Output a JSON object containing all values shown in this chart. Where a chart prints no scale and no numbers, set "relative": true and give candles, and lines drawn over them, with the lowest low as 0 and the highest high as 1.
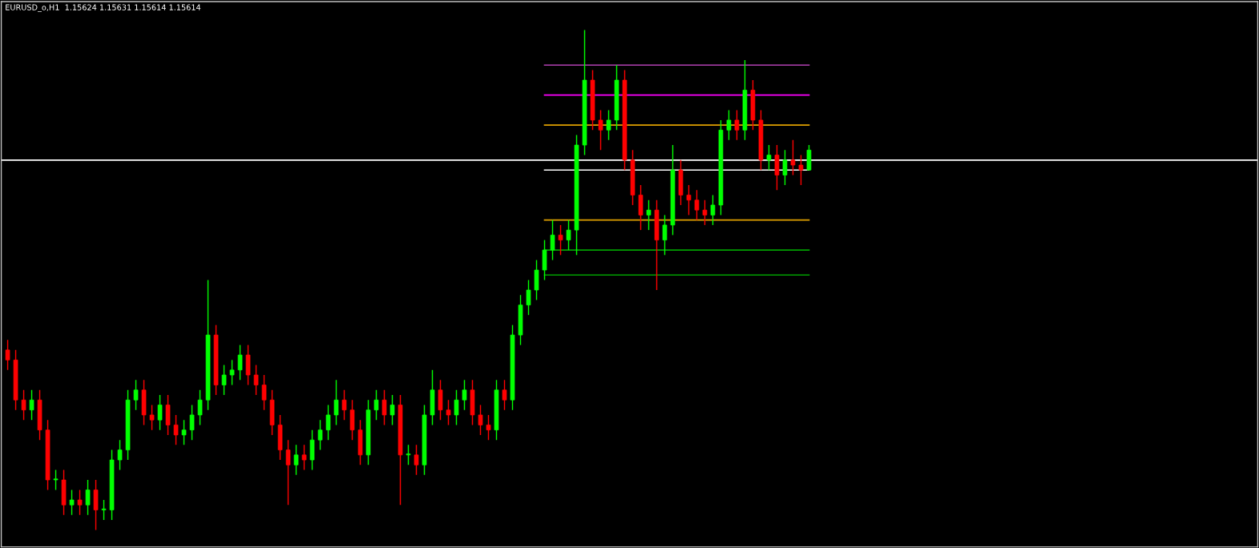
{
  "chart_data": {
    "type": "candlestick",
    "title": "EURUSD_o,H1  1.15624 1.15631 1.15614 1.15614",
    "relative": true,
    "tick_labels": false,
    "categories": [
      null,
      null,
      null,
      null,
      null,
      null,
      null,
      null,
      null,
      null,
      null,
      null,
      null,
      null,
      null,
      null,
      null,
      null,
      null,
      null,
      null,
      null,
      null,
      null,
      null,
      null,
      null,
      null,
      null,
      null,
      null,
      null,
      null,
      null,
      null,
      null,
      null,
      null,
      null,
      null,
      null,
      null,
      null,
      null,
      null,
      null,
      null,
      null,
      null,
      null,
      null,
      null,
      null,
      null,
      null,
      null,
      null,
      null,
      null,
      null,
      null,
      null,
      null,
      null,
      null,
      null,
      null,
      null,
      null,
      null,
      null,
      null,
      null,
      null,
      null,
      null,
      null,
      null,
      null,
      null,
      null,
      null,
      null,
      null,
      null,
      null,
      null,
      null,
      null,
      null,
      null,
      null,
      null,
      null,
      null,
      null,
      null,
      null,
      null,
      null,
      null
    ],
    "ohlc": [
      [
        0.36,
        0.38,
        0.32,
        0.34
      ],
      [
        0.34,
        0.36,
        0.24,
        0.26
      ],
      [
        0.26,
        0.28,
        0.22,
        0.24
      ],
      [
        0.24,
        0.28,
        0.22,
        0.26
      ],
      [
        0.26,
        0.28,
        0.18,
        0.2
      ],
      [
        0.2,
        0.22,
        0.08,
        0.1
      ],
      [
        0.1,
        0.12,
        0.08,
        0.1
      ],
      [
        0.1,
        0.12,
        0.03,
        0.05
      ],
      [
        0.05,
        0.08,
        0.03,
        0.06
      ],
      [
        0.06,
        0.08,
        0.03,
        0.05
      ],
      [
        0.05,
        0.1,
        0.03,
        0.08
      ],
      [
        0.08,
        0.1,
        0.0,
        0.04
      ],
      [
        0.04,
        0.06,
        0.02,
        0.04
      ],
      [
        0.04,
        0.16,
        0.02,
        0.14
      ],
      [
        0.14,
        0.18,
        0.12,
        0.16
      ],
      [
        0.16,
        0.28,
        0.14,
        0.26
      ],
      [
        0.26,
        0.3,
        0.24,
        0.28
      ],
      [
        0.28,
        0.3,
        0.21,
        0.23
      ],
      [
        0.23,
        0.25,
        0.2,
        0.22
      ],
      [
        0.22,
        0.27,
        0.2,
        0.25
      ],
      [
        0.25,
        0.27,
        0.19,
        0.21
      ],
      [
        0.21,
        0.23,
        0.17,
        0.19
      ],
      [
        0.19,
        0.22,
        0.17,
        0.2
      ],
      [
        0.2,
        0.25,
        0.18,
        0.23
      ],
      [
        0.23,
        0.28,
        0.21,
        0.26
      ],
      [
        0.26,
        0.5,
        0.24,
        0.39
      ],
      [
        0.39,
        0.41,
        0.27,
        0.29
      ],
      [
        0.29,
        0.33,
        0.27,
        0.31
      ],
      [
        0.31,
        0.34,
        0.29,
        0.32
      ],
      [
        0.32,
        0.37,
        0.3,
        0.35
      ],
      [
        0.35,
        0.37,
        0.29,
        0.31
      ],
      [
        0.31,
        0.33,
        0.27,
        0.29
      ],
      [
        0.29,
        0.31,
        0.24,
        0.26
      ],
      [
        0.26,
        0.28,
        0.19,
        0.21
      ],
      [
        0.21,
        0.23,
        0.14,
        0.16
      ],
      [
        0.16,
        0.18,
        0.05,
        0.13
      ],
      [
        0.13,
        0.17,
        0.11,
        0.15
      ],
      [
        0.15,
        0.17,
        0.12,
        0.14
      ],
      [
        0.14,
        0.2,
        0.12,
        0.18
      ],
      [
        0.18,
        0.22,
        0.16,
        0.2
      ],
      [
        0.2,
        0.25,
        0.18,
        0.23
      ],
      [
        0.23,
        0.3,
        0.21,
        0.26
      ],
      [
        0.26,
        0.28,
        0.22,
        0.24
      ],
      [
        0.24,
        0.26,
        0.18,
        0.2
      ],
      [
        0.2,
        0.22,
        0.13,
        0.15
      ],
      [
        0.15,
        0.26,
        0.13,
        0.24
      ],
      [
        0.24,
        0.28,
        0.22,
        0.26
      ],
      [
        0.26,
        0.28,
        0.21,
        0.23
      ],
      [
        0.23,
        0.27,
        0.21,
        0.25
      ],
      [
        0.25,
        0.27,
        0.05,
        0.15
      ],
      [
        0.15,
        0.17,
        0.13,
        0.15
      ],
      [
        0.15,
        0.17,
        0.11,
        0.13
      ],
      [
        0.13,
        0.25,
        0.11,
        0.23
      ],
      [
        0.23,
        0.32,
        0.21,
        0.28
      ],
      [
        0.28,
        0.3,
        0.22,
        0.24
      ],
      [
        0.24,
        0.26,
        0.21,
        0.23
      ],
      [
        0.23,
        0.28,
        0.21,
        0.26
      ],
      [
        0.26,
        0.3,
        0.24,
        0.28
      ],
      [
        0.28,
        0.3,
        0.21,
        0.23
      ],
      [
        0.23,
        0.25,
        0.19,
        0.21
      ],
      [
        0.21,
        0.23,
        0.18,
        0.2
      ],
      [
        0.2,
        0.3,
        0.18,
        0.28
      ],
      [
        0.28,
        0.3,
        0.24,
        0.26
      ],
      [
        0.26,
        0.41,
        0.24,
        0.39
      ],
      [
        0.39,
        0.47,
        0.37,
        0.45
      ],
      [
        0.45,
        0.5,
        0.43,
        0.48
      ],
      [
        0.48,
        0.54,
        0.46,
        0.52
      ],
      [
        0.52,
        0.58,
        0.5,
        0.56
      ],
      [
        0.56,
        0.62,
        0.54,
        0.59
      ],
      [
        0.59,
        0.61,
        0.55,
        0.58
      ],
      [
        0.58,
        0.62,
        0.56,
        0.6
      ],
      [
        0.6,
        0.79,
        0.55,
        0.77
      ],
      [
        0.77,
        1.0,
        0.75,
        0.9
      ],
      [
        0.9,
        0.92,
        0.8,
        0.82
      ],
      [
        0.82,
        0.84,
        0.76,
        0.8
      ],
      [
        0.8,
        0.84,
        0.78,
        0.82
      ],
      [
        0.82,
        0.93,
        0.8,
        0.9
      ],
      [
        0.9,
        0.92,
        0.72,
        0.74
      ],
      [
        0.74,
        0.76,
        0.65,
        0.67
      ],
      [
        0.67,
        0.69,
        0.6,
        0.63
      ],
      [
        0.63,
        0.66,
        0.6,
        0.64
      ],
      [
        0.64,
        0.66,
        0.48,
        0.58
      ],
      [
        0.58,
        0.63,
        0.55,
        0.61
      ],
      [
        0.61,
        0.77,
        0.59,
        0.72
      ],
      [
        0.72,
        0.74,
        0.65,
        0.67
      ],
      [
        0.67,
        0.69,
        0.63,
        0.66
      ],
      [
        0.66,
        0.68,
        0.62,
        0.64
      ],
      [
        0.64,
        0.66,
        0.61,
        0.63
      ],
      [
        0.63,
        0.67,
        0.61,
        0.65
      ],
      [
        0.65,
        0.82,
        0.63,
        0.8
      ],
      [
        0.8,
        0.84,
        0.78,
        0.82
      ],
      [
        0.82,
        0.84,
        0.78,
        0.8
      ],
      [
        0.8,
        0.94,
        0.78,
        0.88
      ],
      [
        0.88,
        0.9,
        0.8,
        0.82
      ],
      [
        0.82,
        0.84,
        0.72,
        0.74
      ],
      [
        0.74,
        0.77,
        0.72,
        0.75
      ],
      [
        0.75,
        0.77,
        0.68,
        0.71
      ],
      [
        0.71,
        0.76,
        0.69,
        0.74
      ],
      [
        0.74,
        0.78,
        0.71,
        0.73
      ],
      [
        0.73,
        0.75,
        0.69,
        0.72
      ],
      [
        0.72,
        0.77,
        0.72,
        0.76
      ]
    ],
    "colors": [
      "#ff0000",
      "#ff0000",
      "#ff0000",
      "#00ff00",
      "#ff0000",
      "#ff0000",
      "#00ff00",
      "#ff0000",
      "#00ff00",
      "#ff0000",
      "#00ff00",
      "#ff0000",
      "#00ff00",
      "#00ff00",
      "#00ff00",
      "#00ff00",
      "#00ff00",
      "#ff0000",
      "#ff0000",
      "#00ff00",
      "#ff0000",
      "#ff0000",
      "#00ff00",
      "#00ff00",
      "#00ff00",
      "#00ff00",
      "#ff0000",
      "#00ff00",
      "#00ff00",
      "#00ff00",
      "#ff0000",
      "#ff0000",
      "#ff0000",
      "#ff0000",
      "#ff0000",
      "#ff0000",
      "#00ff00",
      "#ff0000",
      "#00ff00",
      "#00ff00",
      "#00ff00",
      "#00ff00",
      "#ff0000",
      "#ff0000",
      "#ff0000",
      "#00ff00",
      "#00ff00",
      "#ff0000",
      "#00ff00",
      "#ff0000",
      "#00ff00",
      "#ff0000",
      "#00ff00",
      "#00ff00",
      "#ff0000",
      "#ff0000",
      "#00ff00",
      "#00ff00",
      "#ff0000",
      "#ff0000",
      "#ff0000",
      "#00ff00",
      "#ff0000",
      "#00ff00",
      "#00ff00",
      "#00ff00",
      "#00ff00",
      "#00ff00",
      "#00ff00",
      "#ff0000",
      "#00ff00",
      "#00ff00",
      "#00ff00",
      "#ff0000",
      "#ff0000",
      "#00ff00",
      "#00ff00",
      "#ff0000",
      "#ff0000",
      "#ff0000",
      "#00ff00",
      "#ff0000",
      "#00ff00",
      "#00ff00",
      "#ff0000",
      "#ff0000",
      "#ff0000",
      "#ff0000",
      "#00ff00",
      "#00ff00",
      "#00ff00",
      "#ff0000",
      "#00ff00",
      "#ff0000",
      "#ff0000",
      "#00ff00",
      "#ff0000",
      "#00ff00",
      "#ff0000",
      "#ff0000",
      "#00ff00"
    ],
    "series": [
      {
        "type": "line",
        "color": "#b040b0",
        "values": [
          null,
          null,
          null,
          null,
          null,
          null,
          null,
          null,
          null,
          null,
          null,
          null,
          null,
          null,
          null,
          null,
          null,
          null,
          null,
          null,
          null,
          null,
          null,
          null,
          null,
          null,
          null,
          null,
          null,
          null,
          null,
          null,
          null,
          null,
          null,
          null,
          null,
          null,
          null,
          null,
          null,
          null,
          null,
          null,
          null,
          null,
          null,
          null,
          null,
          null,
          null,
          null,
          null,
          null,
          null,
          null,
          null,
          null,
          null,
          null,
          null,
          null,
          null,
          null,
          null,
          null,
          null,
          0.93,
          0.93,
          0.93,
          0.93,
          0.93,
          0.93,
          0.93,
          0.93,
          0.93,
          0.93,
          0.93,
          0.93,
          0.93,
          0.93,
          0.93,
          0.93,
          0.93,
          0.93,
          0.93,
          0.93,
          0.93,
          0.93,
          0.93,
          0.93,
          0.93,
          0.93,
          0.93,
          0.93,
          0.93,
          0.93,
          0.93,
          0.93,
          0.93,
          0.93
        ]
      },
      {
        "type": "line",
        "color": "#ff00ff",
        "values": [
          null,
          null,
          null,
          null,
          null,
          null,
          null,
          null,
          null,
          null,
          null,
          null,
          null,
          null,
          null,
          null,
          null,
          null,
          null,
          null,
          null,
          null,
          null,
          null,
          null,
          null,
          null,
          null,
          null,
          null,
          null,
          null,
          null,
          null,
          null,
          null,
          null,
          null,
          null,
          null,
          null,
          null,
          null,
          null,
          null,
          null,
          null,
          null,
          null,
          null,
          null,
          null,
          null,
          null,
          null,
          null,
          null,
          null,
          null,
          null,
          null,
          null,
          null,
          null,
          null,
          null,
          null,
          0.87,
          0.87,
          0.87,
          0.87,
          0.87,
          0.87,
          0.87,
          0.87,
          0.87,
          0.87,
          0.87,
          0.87,
          0.87,
          0.87,
          0.87,
          0.87,
          0.87,
          0.87,
          0.87,
          0.87,
          0.87,
          0.87,
          0.87,
          0.87,
          0.87,
          0.87,
          0.87,
          0.87,
          0.87,
          0.87,
          0.87,
          0.87,
          0.87,
          0.87
        ]
      },
      {
        "type": "line",
        "color": "#e0a000",
        "values": [
          null,
          null,
          null,
          null,
          null,
          null,
          null,
          null,
          null,
          null,
          null,
          null,
          null,
          null,
          null,
          null,
          null,
          null,
          null,
          null,
          null,
          null,
          null,
          null,
          null,
          null,
          null,
          null,
          null,
          null,
          null,
          null,
          null,
          null,
          null,
          null,
          null,
          null,
          null,
          null,
          null,
          null,
          null,
          null,
          null,
          null,
          null,
          null,
          null,
          null,
          null,
          null,
          null,
          null,
          null,
          null,
          null,
          null,
          null,
          null,
          null,
          null,
          null,
          null,
          null,
          null,
          null,
          0.81,
          0.81,
          0.81,
          0.81,
          0.81,
          0.81,
          0.81,
          0.81,
          0.81,
          0.81,
          0.81,
          0.81,
          0.81,
          0.81,
          0.81,
          0.81,
          0.81,
          0.81,
          0.81,
          0.81,
          0.81,
          0.81,
          0.81,
          0.81,
          0.81,
          0.81,
          0.81,
          0.81,
          0.81,
          0.81,
          0.81,
          0.81,
          0.81,
          0.81
        ]
      },
      {
        "type": "line",
        "color": "#ffffff",
        "values": [
          null,
          null,
          null,
          null,
          null,
          null,
          null,
          null,
          null,
          null,
          null,
          null,
          null,
          null,
          null,
          null,
          null,
          null,
          null,
          null,
          null,
          null,
          null,
          null,
          null,
          null,
          null,
          null,
          null,
          null,
          null,
          null,
          null,
          null,
          null,
          null,
          null,
          null,
          null,
          null,
          null,
          null,
          null,
          null,
          null,
          null,
          null,
          null,
          null,
          null,
          null,
          null,
          null,
          null,
          null,
          null,
          null,
          null,
          null,
          null,
          null,
          null,
          null,
          null,
          null,
          null,
          null,
          0.72,
          0.72,
          0.72,
          0.72,
          0.72,
          0.72,
          0.72,
          0.72,
          0.72,
          0.72,
          0.72,
          0.72,
          0.72,
          0.72,
          0.72,
          0.72,
          0.72,
          0.72,
          0.72,
          0.72,
          0.72,
          0.72,
          0.72,
          0.72,
          0.72,
          0.72,
          0.72,
          0.72,
          0.72,
          0.72,
          0.72,
          0.72,
          0.72,
          0.72
        ]
      },
      {
        "type": "line",
        "color": "#e0a000",
        "values": [
          null,
          null,
          null,
          null,
          null,
          null,
          null,
          null,
          null,
          null,
          null,
          null,
          null,
          null,
          null,
          null,
          null,
          null,
          null,
          null,
          null,
          null,
          null,
          null,
          null,
          null,
          null,
          null,
          null,
          null,
          null,
          null,
          null,
          null,
          null,
          null,
          null,
          null,
          null,
          null,
          null,
          null,
          null,
          null,
          null,
          null,
          null,
          null,
          null,
          null,
          null,
          null,
          null,
          null,
          null,
          null,
          null,
          null,
          null,
          null,
          null,
          null,
          null,
          null,
          null,
          null,
          null,
          0.62,
          0.62,
          0.62,
          0.62,
          0.62,
          0.62,
          0.62,
          0.62,
          0.62,
          0.62,
          0.62,
          0.62,
          0.62,
          0.62,
          0.62,
          0.62,
          0.62,
          0.62,
          0.62,
          0.62,
          0.62,
          0.62,
          0.62,
          0.62,
          0.62,
          0.62,
          0.62,
          0.62,
          0.62,
          0.62,
          0.62,
          0.62,
          0.62,
          0.62
        ]
      },
      {
        "type": "line",
        "color": "#00a000",
        "values": [
          null,
          null,
          null,
          null,
          null,
          null,
          null,
          null,
          null,
          null,
          null,
          null,
          null,
          null,
          null,
          null,
          null,
          null,
          null,
          null,
          null,
          null,
          null,
          null,
          null,
          null,
          null,
          null,
          null,
          null,
          null,
          null,
          null,
          null,
          null,
          null,
          null,
          null,
          null,
          null,
          null,
          null,
          null,
          null,
          null,
          null,
          null,
          null,
          null,
          null,
          null,
          null,
          null,
          null,
          null,
          null,
          null,
          null,
          null,
          null,
          null,
          null,
          null,
          null,
          null,
          null,
          null,
          0.56,
          0.56,
          0.56,
          0.56,
          0.56,
          0.56,
          0.56,
          0.56,
          0.56,
          0.56,
          0.56,
          0.56,
          0.56,
          0.56,
          0.56,
          0.56,
          0.56,
          0.56,
          0.56,
          0.56,
          0.56,
          0.56,
          0.56,
          0.56,
          0.56,
          0.56,
          0.56,
          0.56,
          0.56,
          0.56,
          0.56,
          0.56,
          0.56,
          0.56
        ]
      },
      {
        "type": "line",
        "color": "#00a000",
        "values": [
          null,
          null,
          null,
          null,
          null,
          null,
          null,
          null,
          null,
          null,
          null,
          null,
          null,
          null,
          null,
          null,
          null,
          null,
          null,
          null,
          null,
          null,
          null,
          null,
          null,
          null,
          null,
          null,
          null,
          null,
          null,
          null,
          null,
          null,
          null,
          null,
          null,
          null,
          null,
          null,
          null,
          null,
          null,
          null,
          null,
          null,
          null,
          null,
          null,
          null,
          null,
          null,
          null,
          null,
          null,
          null,
          null,
          null,
          null,
          null,
          null,
          null,
          null,
          null,
          null,
          null,
          null,
          0.51,
          0.51,
          0.51,
          0.51,
          0.51,
          0.51,
          0.51,
          0.51,
          0.51,
          0.51,
          0.51,
          0.51,
          0.51,
          0.51,
          0.51,
          0.51,
          0.51,
          0.51,
          0.51,
          0.51,
          0.51,
          0.51,
          0.51,
          0.51,
          0.51,
          0.51,
          0.51,
          0.51,
          0.51,
          0.51,
          0.51,
          0.51,
          0.51,
          0.51
        ]
      }
    ],
    "ref_lines": [
      {
        "axis": "y",
        "value": 0.74,
        "color": "#ffffff"
      }
    ]
  }
}
